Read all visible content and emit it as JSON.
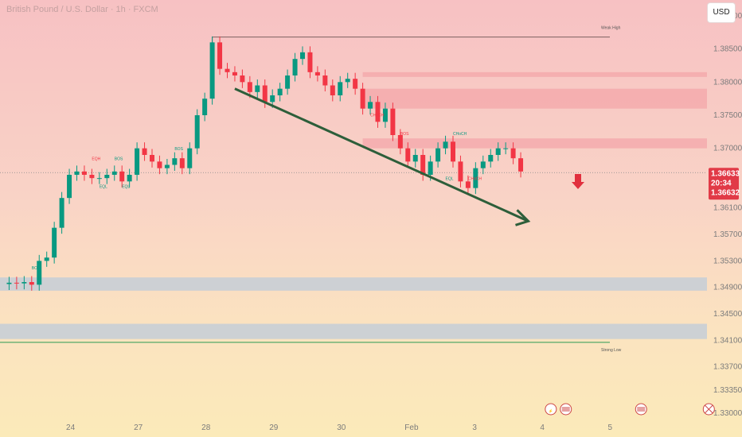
{
  "header": {
    "title": "British Pound / U.S. Dollar · 1h · FXCM",
    "currency": "USD"
  },
  "price_tags": {
    "last": "1.36633",
    "countdown": "20:34",
    "bid": "1.36632"
  },
  "colors": {
    "bull": "#089981",
    "bear": "#f23645",
    "zone_red": "#f4a4a8",
    "zone_grey": "#c8ced6",
    "trend_arrow": "#2d5e3a",
    "ann_green": "#089981",
    "ann_red": "#f23645"
  },
  "chart_data": {
    "type": "candlestick",
    "symbol": "British Pound / U.S. Dollar",
    "timeframe": "1h",
    "ylim": [
      1.33,
      1.39
    ],
    "y_ticks": [
      "1.39000",
      "1.38500",
      "1.38000",
      "1.37500",
      "1.37000",
      "1.36100",
      "1.35700",
      "1.35300",
      "1.34900",
      "1.34500",
      "1.34100",
      "1.33700",
      "1.33350",
      "1.33000"
    ],
    "x_ticks": [
      "24",
      "27",
      "28",
      "29",
      "30",
      "Feb",
      "3",
      "4",
      "5"
    ],
    "x_tick_index": [
      9,
      18,
      27,
      36,
      45,
      54,
      63,
      72,
      81
    ],
    "current_price": 1.36633,
    "close_path": [
      1.3495,
      1.3497,
      1.3496,
      1.3498,
      1.3494,
      1.353,
      1.3535,
      1.358,
      1.3625,
      1.366,
      1.3665,
      1.366,
      1.3655,
      1.3655,
      1.366,
      1.3665,
      1.365,
      1.366,
      1.37,
      1.369,
      1.368,
      1.367,
      1.3675,
      1.3685,
      1.367,
      1.37,
      1.375,
      1.3775,
      1.386,
      1.382,
      1.3815,
      1.381,
      1.38,
      1.3785,
      1.3795,
      1.377,
      1.378,
      1.379,
      1.381,
      1.3835,
      1.3845,
      1.3815,
      1.381,
      1.3795,
      1.378,
      1.38,
      1.3805,
      1.379,
      1.376,
      1.377,
      1.374,
      1.376,
      1.372,
      1.37,
      1.368,
      1.369,
      1.366,
      1.368,
      1.37,
      1.371,
      1.368,
      1.365,
      1.364,
      1.367,
      1.368,
      1.369,
      1.37,
      1.37,
      1.3685,
      1.3665
    ],
    "levels": [
      {
        "label": "Weak High",
        "value": 1.3868
      },
      {
        "label": "Strong Low",
        "value": 1.3407
      }
    ],
    "zones": [
      {
        "kind": "supply",
        "top": 1.3815,
        "bottom": 1.3808
      },
      {
        "kind": "supply",
        "top": 1.379,
        "bottom": 1.376
      },
      {
        "kind": "supply",
        "top": 1.3715,
        "bottom": 1.37
      },
      {
        "kind": "demand",
        "top": 1.3505,
        "bottom": 1.3485
      },
      {
        "kind": "demand",
        "top": 1.3435,
        "bottom": 1.3412
      }
    ],
    "annotations": [
      {
        "text": "BOS",
        "type": "green",
        "x_index": 4,
        "value": 1.3517
      },
      {
        "text": "EQH",
        "type": "red",
        "x_index": 12,
        "value": 1.3682
      },
      {
        "text": "BOS",
        "type": "green",
        "x_index": 15,
        "value": 1.3682
      },
      {
        "text": "EQL",
        "type": "green",
        "x_index": 13,
        "value": 1.364
      },
      {
        "text": "EQL",
        "type": "green",
        "x_index": 16,
        "value": 1.364
      },
      {
        "text": "BOS",
        "type": "green",
        "x_index": 23,
        "value": 1.3697
      },
      {
        "text": "CHoCH",
        "type": "red",
        "x_index": 49,
        "value": 1.3748
      },
      {
        "text": "BOS",
        "type": "red",
        "x_index": 53,
        "value": 1.372
      },
      {
        "text": "CHoCH",
        "type": "green",
        "x_index": 60,
        "value": 1.372
      },
      {
        "text": "EQL",
        "type": "green",
        "x_index": 59,
        "value": 1.3652
      },
      {
        "text": "CHoCH",
        "type": "red",
        "x_index": 62,
        "value": 1.3652
      }
    ],
    "trend_arrow": {
      "from": {
        "x_index": 31,
        "value": 1.379
      },
      "to": {
        "x_index": 70,
        "value": 1.359
      }
    },
    "signal_arrow": "down",
    "event_icons": [
      {
        "name": "lightning-icon",
        "x_index": 73
      },
      {
        "name": "us-flag-icon",
        "x_index": 75
      },
      {
        "name": "us-flag-icon",
        "x_index": 85
      },
      {
        "name": "uk-flag-icon",
        "x_index": 94
      }
    ]
  }
}
